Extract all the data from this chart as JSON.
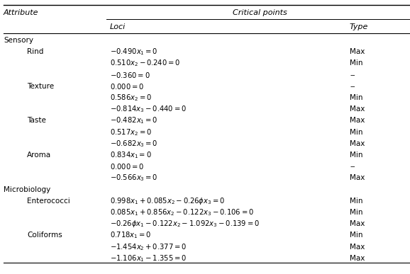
{
  "col_headers": [
    "Attribute",
    "Critical points"
  ],
  "sub_headers": [
    "Loci",
    "Type"
  ],
  "rows": [
    {
      "category": "Sensory",
      "subcategory": "",
      "loci": "",
      "type": ""
    },
    {
      "category": "",
      "subcategory": "Rind",
      "loci": "$-0.490x_1 = 0$",
      "type": "Max"
    },
    {
      "category": "",
      "subcategory": "",
      "loci": "$0.510x_2 - 0.240 = 0$",
      "type": "Min"
    },
    {
      "category": "",
      "subcategory": "",
      "loci": "$-0.360 = 0$",
      "type": "--"
    },
    {
      "category": "",
      "subcategory": "Texture",
      "loci": "$0.000 = 0$",
      "type": "--"
    },
    {
      "category": "",
      "subcategory": "",
      "loci": "$0.586x_2 = 0$",
      "type": "Min"
    },
    {
      "category": "",
      "subcategory": "",
      "loci": "$-0.814x_3 - 0.440 = 0$",
      "type": "Max"
    },
    {
      "category": "",
      "subcategory": "Taste",
      "loci": "$-0.482x_1 = 0$",
      "type": "Max"
    },
    {
      "category": "",
      "subcategory": "",
      "loci": "$0.517x_2 = 0$",
      "type": "Min"
    },
    {
      "category": "",
      "subcategory": "",
      "loci": "$-0.682x_3 = 0$",
      "type": "Max"
    },
    {
      "category": "",
      "subcategory": "Aroma",
      "loci": "$0.834x_1 = 0$",
      "type": "Min"
    },
    {
      "category": "",
      "subcategory": "",
      "loci": "$0.000 = 0$",
      "type": "--"
    },
    {
      "category": "",
      "subcategory": "",
      "loci": "$-0.566x_3 = 0$",
      "type": "Max"
    },
    {
      "category": "Microbiology",
      "subcategory": "",
      "loci": "",
      "type": ""
    },
    {
      "category": "",
      "subcategory": "Enterococci",
      "loci": "$0.998x_1 + 0.085x_2 - 0.26\\phi x_3 = 0$",
      "type": "Min"
    },
    {
      "category": "",
      "subcategory": "",
      "loci": "$0.085x_1 + 0.856x_2 - 0.122x_3 - 0.106 = 0$",
      "type": "Min"
    },
    {
      "category": "",
      "subcategory": "",
      "loci": "$-0.26\\phi x_1 - 0.122x_2 - 1.092x_3 - 0.139 = 0$",
      "type": "Max"
    },
    {
      "category": "",
      "subcategory": "Coliforms",
      "loci": "$0.718x_1 = 0$",
      "type": "Min"
    },
    {
      "category": "",
      "subcategory": "",
      "loci": "$-1.454x_2 + 0.377 = 0$",
      "type": "Max"
    },
    {
      "category": "",
      "subcategory": "",
      "loci": "$-1.106x_1 - 1.355 = 0$",
      "type": "Max"
    }
  ],
  "bg_color": "#ffffff",
  "text_color": "#000000",
  "line_color": "#000000",
  "font_size": 7.5,
  "header_font_size": 8.0
}
